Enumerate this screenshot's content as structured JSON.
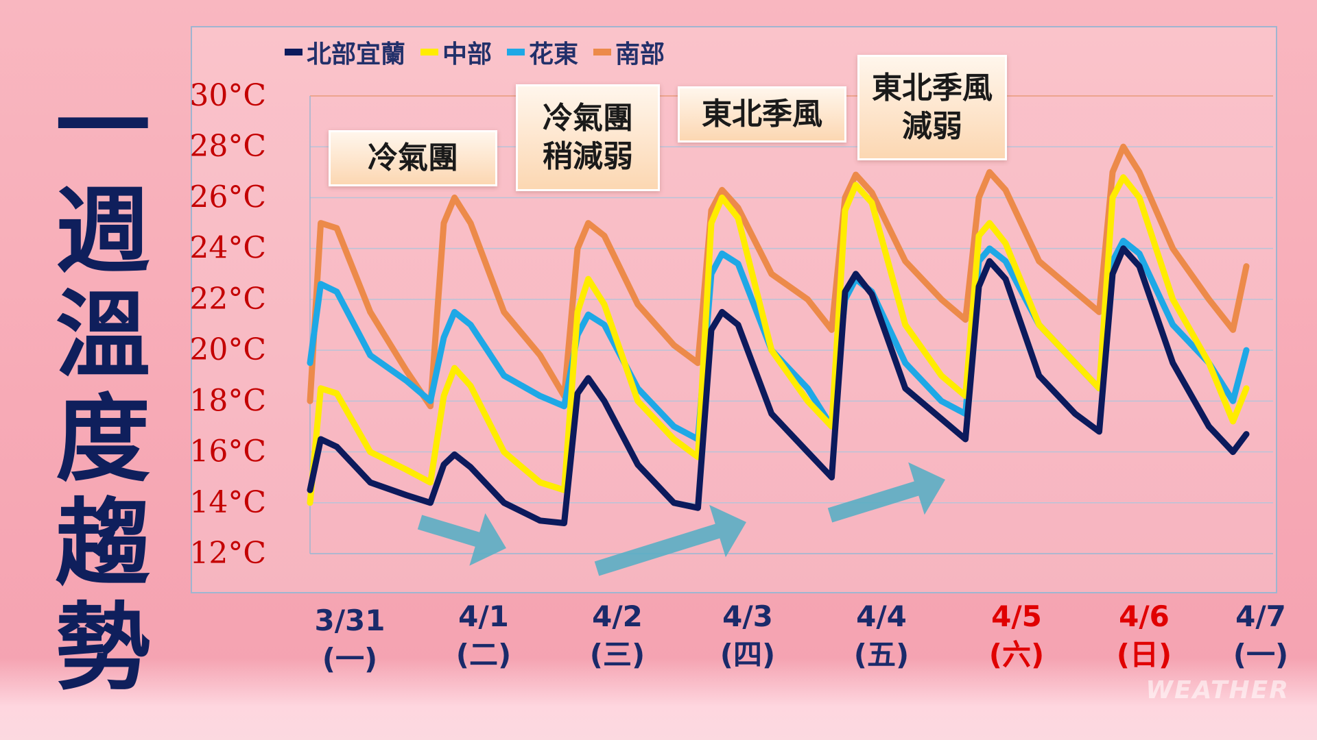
{
  "title": "一週溫度趨勢",
  "watermark": "WEATHER",
  "annotations": [
    "冷氣團",
    "冷氣團\n稍減弱",
    "東北季風",
    "東北季風\n減弱"
  ],
  "colors": {
    "north": "#0c1a5c",
    "central": "#ffec00",
    "east": "#1ea8e6",
    "south": "#ec8a4a",
    "ytick": "#c40000",
    "weekday": "#1a2a6a",
    "weekend": "#e00000",
    "arrow": "#5aaec4"
  },
  "chart_data": {
    "type": "line",
    "legend_position": "top-left",
    "ylim": [
      12,
      30
    ],
    "yticks": [
      "12°C",
      "14°C",
      "16°C",
      "18°C",
      "20°C",
      "22°C",
      "24°C",
      "26°C",
      "28°C",
      "30°C"
    ],
    "x_dates": [
      "3/31",
      "4/1",
      "4/2",
      "4/3",
      "4/4",
      "4/5",
      "4/6",
      "4/7"
    ],
    "x_days": [
      "(一)",
      "(二)",
      "(三)",
      "(四)",
      "(五)",
      "(六)",
      "(日)",
      "(一)"
    ],
    "weekend_index": [
      5,
      6
    ],
    "x": [
      0,
      0.08,
      0.2,
      0.45,
      0.72,
      0.9,
      1,
      1.08,
      1.2,
      1.45,
      1.72,
      1.9,
      2,
      2.08,
      2.2,
      2.45,
      2.72,
      2.9,
      3,
      3.08,
      3.2,
      3.45,
      3.72,
      3.9,
      4,
      4.08,
      4.2,
      4.45,
      4.72,
      4.9,
      5,
      5.08,
      5.2,
      5.45,
      5.72,
      5.9,
      6,
      6.08,
      6.2,
      6.45,
      6.72,
      6.9,
      7
    ],
    "series": [
      {
        "name": "北部宜蘭",
        "key": "north",
        "values": [
          14.5,
          16.5,
          16.2,
          14.8,
          14.3,
          14.0,
          15.5,
          15.9,
          15.4,
          14.0,
          13.3,
          13.2,
          18.3,
          18.9,
          18.0,
          15.5,
          14.0,
          13.8,
          20.8,
          21.5,
          21.0,
          17.5,
          16.0,
          15.0,
          22.3,
          23.0,
          22.2,
          18.5,
          17.3,
          16.5,
          22.5,
          23.5,
          22.8,
          19.0,
          17.5,
          16.8,
          23.0,
          24.0,
          23.3,
          19.5,
          17.0,
          16.0,
          16.7
        ]
      },
      {
        "name": "中部",
        "key": "central",
        "values": [
          14.0,
          18.5,
          18.3,
          16.0,
          15.3,
          14.8,
          18.2,
          19.3,
          18.6,
          16.0,
          14.8,
          14.5,
          21.5,
          22.8,
          21.8,
          18.0,
          16.5,
          15.8,
          25.0,
          26.0,
          25.2,
          20.0,
          18.0,
          17.0,
          25.5,
          26.5,
          25.8,
          21.0,
          19.0,
          18.2,
          24.5,
          25.0,
          24.2,
          21.0,
          19.5,
          18.5,
          26.0,
          26.8,
          26.0,
          22.0,
          19.5,
          17.2,
          18.5
        ]
      },
      {
        "name": "花東",
        "key": "east",
        "values": [
          19.5,
          22.6,
          22.3,
          19.8,
          18.8,
          18.0,
          20.5,
          21.5,
          21.0,
          19.0,
          18.2,
          17.8,
          20.6,
          21.4,
          21.0,
          18.5,
          17.0,
          16.5,
          23.0,
          23.8,
          23.4,
          20.0,
          18.5,
          17.0,
          22.0,
          22.8,
          22.3,
          19.5,
          18.0,
          17.5,
          23.5,
          24.0,
          23.5,
          21.0,
          19.5,
          18.5,
          23.5,
          24.3,
          23.8,
          21.0,
          19.5,
          18.0,
          20.0
        ]
      },
      {
        "name": "南部",
        "key": "south",
        "values": [
          18.0,
          25.0,
          24.8,
          21.5,
          19.2,
          17.8,
          25.0,
          26.0,
          25.0,
          21.5,
          19.8,
          18.2,
          24.0,
          25.0,
          24.5,
          21.8,
          20.2,
          19.5,
          25.5,
          26.3,
          25.6,
          23.0,
          22.0,
          20.8,
          26.0,
          26.9,
          26.2,
          23.5,
          22.0,
          21.2,
          26.0,
          27.0,
          26.3,
          23.5,
          22.3,
          21.5,
          27.0,
          28.0,
          27.0,
          24.0,
          22.0,
          20.8,
          23.3
        ]
      }
    ]
  }
}
